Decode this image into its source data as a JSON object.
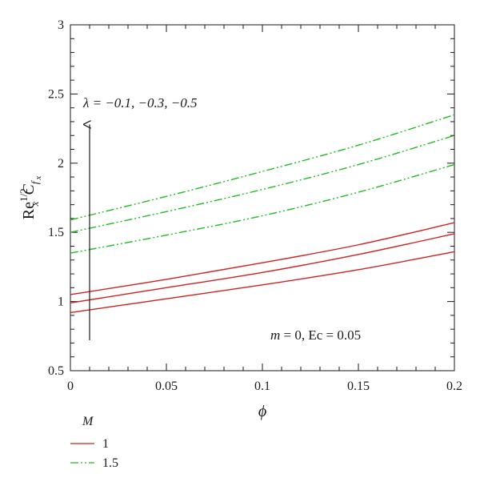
{
  "chart_data": {
    "type": "line",
    "title": "",
    "xlabel": "ϕ",
    "ylabel_parts": {
      "base": "Re",
      "sup": "1/2",
      "sub": "x",
      "mid": "C",
      "sub2": "f",
      "sub3": "x"
    },
    "xlim": [
      0,
      0.2
    ],
    "ylim": [
      0.5,
      3
    ],
    "x_ticks": [
      0,
      0.05,
      0.1,
      0.15,
      0.2
    ],
    "x_tick_labels": [
      "0",
      "0.05",
      "0.1",
      "0.15",
      "0.2"
    ],
    "y_ticks": [
      0.5,
      1,
      1.5,
      2,
      2.5,
      3
    ],
    "y_tick_labels": [
      "0.5",
      "1",
      "1.5",
      "2",
      "2.5",
      "3"
    ],
    "grid": false,
    "legend_title": "M",
    "legend_placement": "bottom-left",
    "series": [
      {
        "name": "1",
        "group": "1",
        "lambda": -0.1,
        "color": "#cc2222",
        "dash": "solid",
        "x": [
          0,
          0.05,
          0.1,
          0.15,
          0.2
        ],
        "y": [
          0.92,
          1.02,
          1.12,
          1.23,
          1.36
        ]
      },
      {
        "name": "1",
        "group": "1",
        "lambda": -0.3,
        "color": "#cc2222",
        "dash": "solid",
        "x": [
          0,
          0.05,
          0.1,
          0.15,
          0.2
        ],
        "y": [
          0.99,
          1.1,
          1.21,
          1.34,
          1.49
        ]
      },
      {
        "name": "1",
        "group": "1",
        "lambda": -0.5,
        "color": "#cc2222",
        "dash": "solid",
        "x": [
          0,
          0.05,
          0.1,
          0.15,
          0.2
        ],
        "y": [
          1.05,
          1.16,
          1.28,
          1.41,
          1.57
        ]
      },
      {
        "name": "1.5",
        "group": "1.5",
        "lambda": -0.1,
        "color": "#22bb22",
        "dash": "dashdotdot",
        "x": [
          0,
          0.05,
          0.1,
          0.15,
          0.2
        ],
        "y": [
          1.35,
          1.48,
          1.62,
          1.79,
          1.99
        ]
      },
      {
        "name": "1.5",
        "group": "1.5",
        "lambda": -0.3,
        "color": "#22bb22",
        "dash": "dashdotdot",
        "x": [
          0,
          0.05,
          0.1,
          0.15,
          0.2
        ],
        "y": [
          1.5,
          1.65,
          1.81,
          1.99,
          2.2
        ]
      },
      {
        "name": "1.5",
        "group": "1.5",
        "lambda": -0.5,
        "color": "#22bb22",
        "dash": "dashdotdot",
        "x": [
          0,
          0.05,
          0.1,
          0.15,
          0.2
        ],
        "y": [
          1.59,
          1.76,
          1.94,
          2.13,
          2.35
        ]
      }
    ],
    "legend": [
      {
        "label": "1",
        "color": "#cc2222",
        "dash": "solid"
      },
      {
        "label": "1.5",
        "color": "#22bb22",
        "dash": "dashdotdot"
      }
    ],
    "annotations": {
      "lambda_text": "λ = −0.1, −0.3, −0.5",
      "arrow_x": 0.01,
      "arrow_y_from": 0.72,
      "arrow_y_to": 2.28,
      "params_m": "m",
      "params_rest": " = 0, Ec = 0.05"
    }
  }
}
